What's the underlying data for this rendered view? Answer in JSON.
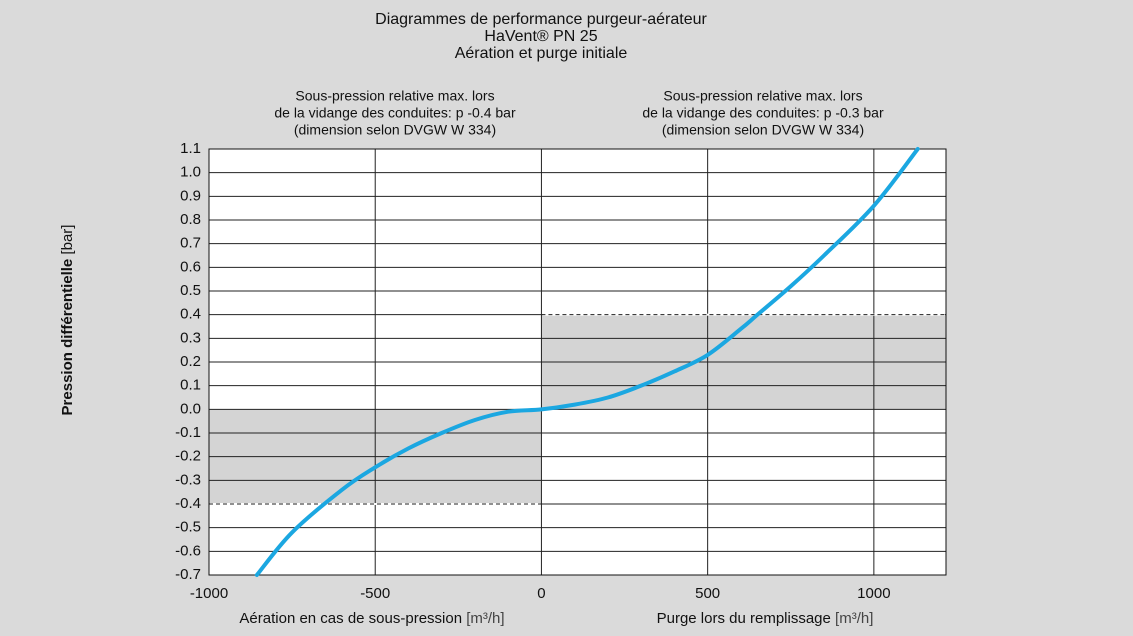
{
  "chart_data": {
    "type": "line",
    "title": [
      "Diagrammes de performance purgeur-aérateur",
      "HaVent® PN 25",
      "Aération et purge initiale"
    ],
    "annotations": [
      [
        "Sous-pression relative max. lors",
        "de la vidange des conduites: p -0.4 bar",
        "(dimension selon DVGW W 334)"
      ],
      [
        "Sous-pression relative max. lors",
        "de la vidange des conduites: p -0.3 bar",
        "(dimension selon DVGW W 334)"
      ]
    ],
    "y_label": {
      "bold": "Pression différentielle",
      "unit": "[bar]"
    },
    "x_labels": [
      {
        "text": "Aération en cas de sous-pression",
        "unit": "[m³/h]"
      },
      {
        "text": "Purge lors du remplissage",
        "unit": "[m³/h]"
      }
    ],
    "x": [
      -856,
      -750,
      -600,
      -500,
      -400,
      -300,
      -200,
      -100,
      0,
      100,
      200,
      300,
      400,
      500,
      600,
      650,
      750,
      850,
      1000,
      1132
    ],
    "values": [
      -0.7,
      -0.52,
      -0.34,
      -0.245,
      -0.165,
      -0.1,
      -0.045,
      -0.01,
      0,
      0.02,
      0.05,
      0.1,
      0.16,
      0.23,
      0.34,
      0.4,
      0.52,
      0.65,
      0.86,
      1.1
    ],
    "color": "#1ba7e1",
    "xlim": [
      -1000,
      1217
    ],
    "ylim": [
      -0.7,
      1.1
    ],
    "xticks": [
      -1000,
      -500,
      0,
      500,
      1000
    ],
    "yticks": [
      1.1,
      {
        "value": 1,
        "label": "1.0"
      },
      0.9,
      0.8,
      0.7,
      0.6,
      0.5,
      0.4,
      0.3,
      0.2,
      0.1,
      {
        "value": 0,
        "label": "0.0"
      },
      -0.1,
      -0.2,
      -0.3,
      -0.4,
      -0.5,
      -0.6,
      -0.7
    ],
    "grid": true,
    "regions": [
      {
        "x": [
          -1000,
          0
        ],
        "y": [
          -0.4,
          0
        ],
        "color": "#d4d4d4"
      },
      {
        "x": [
          0,
          1217
        ],
        "y": [
          0,
          0.4
        ],
        "color": "#d4d4d4"
      }
    ]
  }
}
